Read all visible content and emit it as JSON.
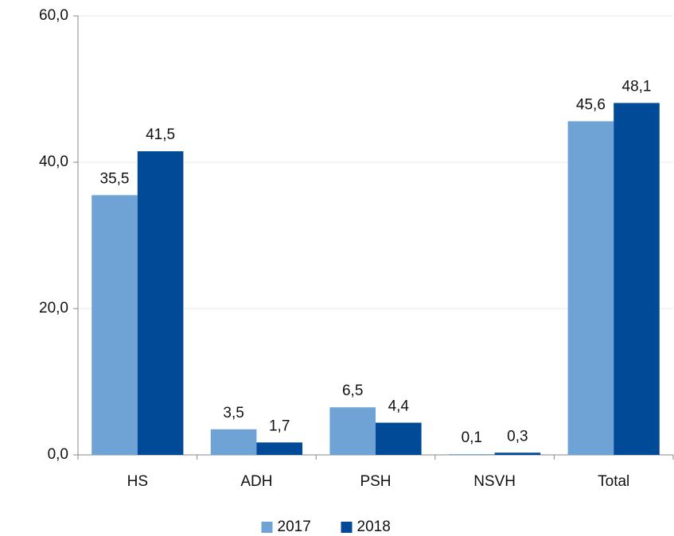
{
  "chart_data": {
    "type": "bar",
    "categories": [
      "HS",
      "ADH",
      "PSH",
      "NSVH",
      "Total"
    ],
    "series": [
      {
        "name": "2017",
        "color": "#6fa3d6",
        "values": [
          35.5,
          3.5,
          6.5,
          0.1,
          45.6
        ],
        "value_labels": [
          "35,5",
          "3,5",
          "6,5",
          "0,1",
          "45,6"
        ]
      },
      {
        "name": "2018",
        "color": "#004a98",
        "values": [
          41.5,
          1.7,
          4.4,
          0.3,
          48.1
        ],
        "value_labels": [
          "41,5",
          "1,7",
          "4,4",
          "0,3",
          "48,1"
        ]
      }
    ],
    "ylim": [
      0,
      60
    ],
    "yticks": [
      {
        "value": 0,
        "label": "0,0"
      },
      {
        "value": 20,
        "label": "20,0"
      },
      {
        "value": 40,
        "label": "40,0"
      },
      {
        "value": 60,
        "label": "60,0"
      }
    ],
    "grid": true,
    "legend": "bottom"
  }
}
